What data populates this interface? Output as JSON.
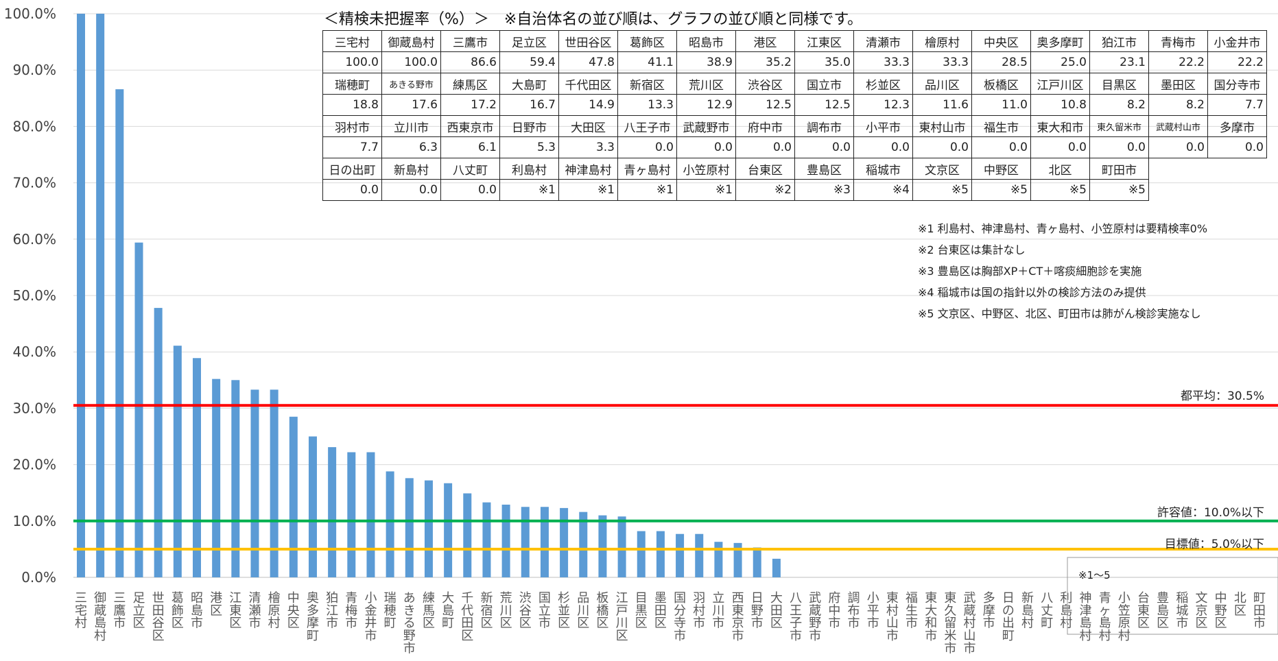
{
  "chart_data": {
    "type": "bar",
    "ylim": [
      0,
      100
    ],
    "yticks": [
      "0.0%",
      "10.0%",
      "20.0%",
      "30.0%",
      "40.0%",
      "50.0%",
      "60.0%",
      "70.0%",
      "80.0%",
      "90.0%",
      "100.0%"
    ],
    "bar_color": "#5b9bd5",
    "categories": [
      "三宅村",
      "御蔵島村",
      "三鷹市",
      "足立区",
      "世田谷区",
      "葛飾区",
      "昭島市",
      "港区",
      "江東区",
      "清瀬市",
      "檜原村",
      "中央区",
      "奥多摩町",
      "狛江市",
      "青梅市",
      "小金井市",
      "瑞穂町",
      "あきる野市",
      "練馬区",
      "大島町",
      "千代田区",
      "新宿区",
      "荒川区",
      "渋谷区",
      "国立市",
      "杉並区",
      "品川区",
      "板橋区",
      "江戸川区",
      "目黒区",
      "墨田区",
      "国分寺市",
      "羽村市",
      "立川市",
      "西東京市",
      "日野市",
      "大田区",
      "八王子市",
      "武蔵野市",
      "府中市",
      "調布市",
      "小平市",
      "東村山市",
      "福生市",
      "東大和市",
      "東久留米市",
      "武蔵村山市",
      "多摩市",
      "日の出町",
      "新島村",
      "八丈町",
      "利島村",
      "神津島村",
      "青ヶ島村",
      "小笠原村",
      "台東区",
      "豊島区",
      "稲城市",
      "文京区",
      "中野区",
      "北区",
      "町田市"
    ],
    "values": [
      100.0,
      100.0,
      86.6,
      59.4,
      47.8,
      41.1,
      38.9,
      35.2,
      35.0,
      33.3,
      33.3,
      28.5,
      25.0,
      23.1,
      22.2,
      22.2,
      18.8,
      17.6,
      17.2,
      16.7,
      14.9,
      13.3,
      12.9,
      12.5,
      12.5,
      12.3,
      11.6,
      11.0,
      10.8,
      8.2,
      8.2,
      7.7,
      7.7,
      6.3,
      6.1,
      5.3,
      3.3,
      0.0,
      0.0,
      0.0,
      0.0,
      0.0,
      0.0,
      0.0,
      0.0,
      0.0,
      0.0,
      0.0,
      0.0,
      0.0,
      0.0,
      null,
      null,
      null,
      null,
      null,
      null,
      null,
      null,
      null,
      null,
      null
    ],
    "reference_lines": [
      {
        "label": "都平均：30.5%",
        "value": 30.5,
        "color": "#ff0000"
      },
      {
        "label": "許容値：10.0%以下",
        "value": 10.0,
        "color": "#00b050"
      },
      {
        "label": "目標値：5.0%以下",
        "value": 5.0,
        "color": "#ffc000"
      }
    ],
    "box_note": "※1～5"
  },
  "table": {
    "title": "＜精検未把握率（%）＞　※自治体名の並び順は、グラフの並び順と同様です。",
    "rows": [
      {
        "names": [
          "三宅村",
          "御蔵島村",
          "三鷹市",
          "足立区",
          "世田谷区",
          "葛飾区",
          "昭島市",
          "港区",
          "江東区",
          "清瀬市",
          "檜原村",
          "中央区",
          "奥多摩町",
          "狛江市",
          "青梅市",
          "小金井市"
        ],
        "values": [
          "100.0",
          "100.0",
          "86.6",
          "59.4",
          "47.8",
          "41.1",
          "38.9",
          "35.2",
          "35.0",
          "33.3",
          "33.3",
          "28.5",
          "25.0",
          "23.1",
          "22.2",
          "22.2"
        ]
      },
      {
        "names": [
          "瑞穂町",
          "あきる野市",
          "練馬区",
          "大島町",
          "千代田区",
          "新宿区",
          "荒川区",
          "渋谷区",
          "国立市",
          "杉並区",
          "品川区",
          "板橋区",
          "江戸川区",
          "目黒区",
          "墨田区",
          "国分寺市"
        ],
        "values": [
          "18.8",
          "17.6",
          "17.2",
          "16.7",
          "14.9",
          "13.3",
          "12.9",
          "12.5",
          "12.5",
          "12.3",
          "11.6",
          "11.0",
          "10.8",
          "8.2",
          "8.2",
          "7.7"
        ]
      },
      {
        "names": [
          "羽村市",
          "立川市",
          "西東京市",
          "日野市",
          "大田区",
          "八王子市",
          "武蔵野市",
          "府中市",
          "調布市",
          "小平市",
          "東村山市",
          "福生市",
          "東大和市",
          "東久留米市",
          "武蔵村山市",
          "多摩市"
        ],
        "values": [
          "7.7",
          "6.3",
          "6.1",
          "5.3",
          "3.3",
          "0.0",
          "0.0",
          "0.0",
          "0.0",
          "0.0",
          "0.0",
          "0.0",
          "0.0",
          "0.0",
          "0.0",
          "0.0"
        ]
      },
      {
        "names": [
          "日の出町",
          "新島村",
          "八丈町",
          "利島村",
          "神津島村",
          "青ヶ島村",
          "小笠原村",
          "台東区",
          "豊島区",
          "稲城市",
          "文京区",
          "中野区",
          "北区",
          "町田市"
        ],
        "values": [
          "0.0",
          "0.0",
          "0.0",
          "※1",
          "※1",
          "※1",
          "※1",
          "※2",
          "※3",
          "※4",
          "※5",
          "※5",
          "※5",
          "※5"
        ]
      }
    ]
  },
  "notes": [
    "※1 利島村、神津島村、青ヶ島村、小笠原村は要精検率0%",
    "※2 台東区は集計なし",
    "※3 豊島区は胸部XP＋CT＋喀痰細胞診を実施",
    "※4 稲城市は国の指針以外の検診方法のみ提供",
    "※5 文京区、中野区、北区、町田市は肺がん検診実施なし"
  ]
}
